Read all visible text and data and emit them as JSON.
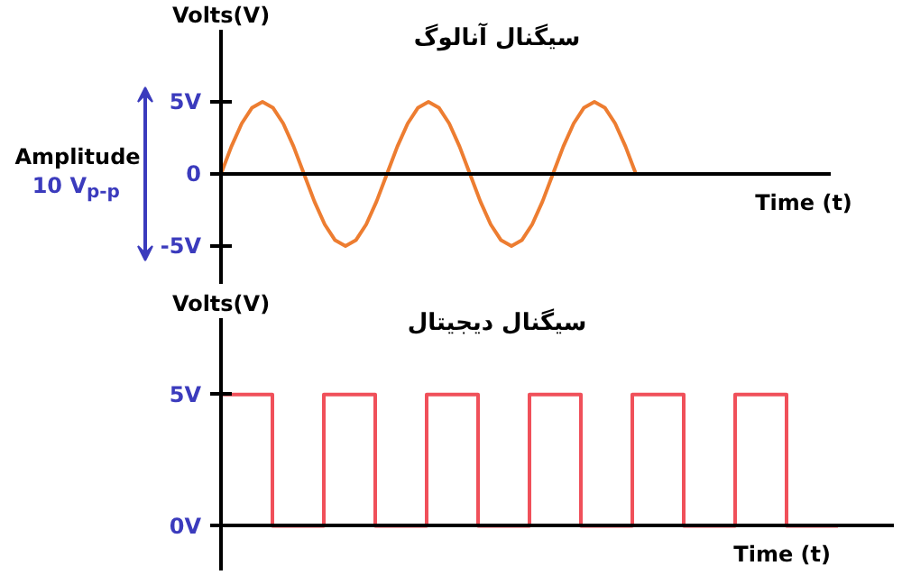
{
  "chart_data": [
    {
      "type": "line",
      "title": "سیگنال آنالوگ",
      "xlabel": "Time (t)",
      "ylabel": "Volts(V)",
      "categories": [
        null,
        null,
        null,
        null,
        null,
        null,
        null,
        null,
        null,
        null,
        null,
        null,
        null,
        null,
        null,
        null,
        null,
        null,
        null,
        null,
        null,
        null,
        null,
        null,
        null,
        null,
        null,
        null,
        null,
        null,
        null,
        null,
        null,
        null,
        null,
        null,
        null,
        null,
        null,
        null,
        null
      ],
      "series": [
        {
          "color": "#ed7d31",
          "values": [
            0,
            1.9,
            3.5,
            4.6,
            5,
            4.6,
            3.5,
            1.9,
            0,
            -1.9,
            -3.5,
            -4.6,
            -5,
            -4.6,
            -3.5,
            -1.9,
            0,
            1.9,
            3.5,
            4.6,
            5,
            4.6,
            3.5,
            1.9,
            0,
            -1.9,
            -3.5,
            -4.6,
            -5,
            -4.6,
            -3.5,
            -1.9,
            0,
            1.9,
            3.5,
            4.6,
            5,
            4.6,
            3.5,
            1.9,
            0
          ]
        }
      ],
      "ylim": [
        -8,
        12
      ],
      "yticks": [
        {
          "value": 5,
          "label": "5V"
        },
        {
          "value": 0,
          "label": "0"
        },
        {
          "value": -5,
          "label": "-5V"
        }
      ],
      "tick_labels": "y",
      "annotations": [
        "Amplitude",
        "10 V$_{p-p}$"
      ]
    },
    {
      "type": "step",
      "title": "سیگنال دیجیتال",
      "xlabel": "Time (t)",
      "ylabel": "Volts(V)",
      "categories": [
        null,
        null,
        null,
        null,
        null,
        null,
        null,
        null,
        null,
        null,
        null,
        null,
        null
      ],
      "series": [
        {
          "color": "#f0505a",
          "values": [
            5,
            0,
            5,
            0,
            5,
            0,
            5,
            0,
            5,
            0,
            5,
            0,
            0
          ]
        }
      ],
      "ylim": [
        -1.9,
        9
      ],
      "yticks": [
        {
          "value": 5,
          "label": "5V"
        },
        {
          "value": 0,
          "label": "0V"
        }
      ],
      "tick_labels": "y"
    }
  ]
}
